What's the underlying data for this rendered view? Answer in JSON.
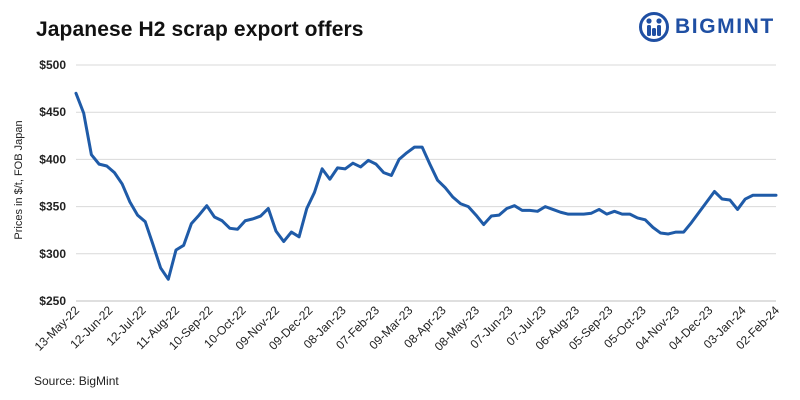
{
  "title": "Japanese H2 scrap export offers",
  "logo_text": "BIGMINT",
  "source": "Source: BigMint",
  "colors": {
    "line": "#1f5ba8",
    "grid": "#d9d9d9",
    "logo": "#1f4fa3",
    "text": "#222222"
  },
  "chart_data": {
    "type": "line",
    "title": "Japanese H2 scrap export offers",
    "xlabel": "",
    "ylabel": "Prices in $/t, FOB Japan",
    "ylim": [
      250,
      500
    ],
    "yticks": [
      250,
      300,
      350,
      400,
      450,
      500
    ],
    "ytick_labels": [
      "$250",
      "$300",
      "$350",
      "$400",
      "$450",
      "$500"
    ],
    "grid": "horizontal",
    "xtick_labels": [
      "13-May-22",
      "12-Jun-22",
      "12-Jul-22",
      "11-Aug-22",
      "10-Sep-22",
      "10-Oct-22",
      "09-Nov-22",
      "09-Dec-22",
      "08-Jan-23",
      "07-Feb-23",
      "09-Mar-23",
      "08-Apr-23",
      "08-May-23",
      "07-Jun-23",
      "07-Jul-23",
      "06-Aug-23",
      "05-Sep-23",
      "05-Oct-23",
      "04-Nov-23",
      "04-Dec-23",
      "03-Jan-24",
      "02-Feb-24"
    ],
    "series": [
      {
        "name": "",
        "values": [
          470,
          449,
          405,
          395,
          393,
          386,
          374,
          355,
          341,
          334,
          310,
          285,
          273,
          304,
          309,
          332,
          341,
          351,
          339,
          335,
          327,
          326,
          335,
          337,
          340,
          348,
          324,
          313,
          323,
          318,
          348,
          365,
          390,
          379,
          391,
          390,
          396,
          392,
          399,
          395,
          386,
          383,
          400,
          407,
          413,
          413,
          395,
          378,
          370,
          360,
          353,
          350,
          341,
          331,
          340,
          341,
          348,
          351,
          346,
          346,
          345,
          350,
          347,
          344,
          342,
          342,
          342,
          343,
          347,
          342,
          345,
          342,
          342,
          338,
          336,
          328,
          322,
          321,
          323,
          323,
          333,
          344,
          355,
          366,
          358,
          357,
          347,
          358,
          362,
          362,
          362,
          362
        ]
      }
    ]
  }
}
